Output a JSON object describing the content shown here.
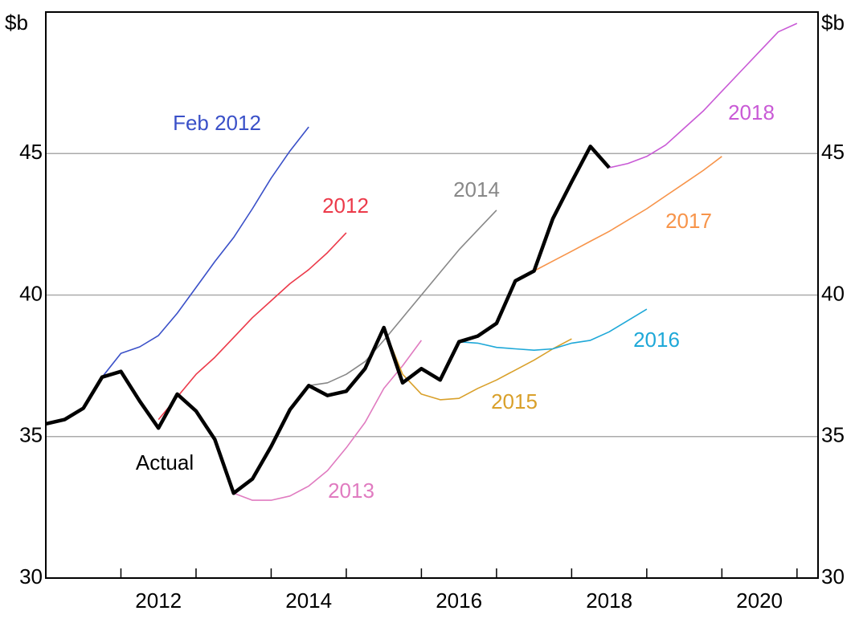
{
  "chart_data": {
    "type": "line",
    "y_unit_label": "$b",
    "xlim": [
      2011,
      2021.28
    ],
    "ylim": [
      30,
      50
    ],
    "yticks": [
      30,
      35,
      40,
      45
    ],
    "xticks": [
      {
        "value": 2012.5,
        "label": "2012"
      },
      {
        "value": 2014.5,
        "label": "2014"
      },
      {
        "value": 2016.5,
        "label": "2016"
      },
      {
        "value": 2018.5,
        "label": "2018"
      },
      {
        "value": 2020.5,
        "label": "2020"
      }
    ],
    "xminor_ticks": [
      2012,
      2013,
      2014,
      2015,
      2016,
      2017,
      2018,
      2019,
      2020,
      2021
    ],
    "grid": true,
    "series": [
      {
        "name": "Actual",
        "color": "#000000",
        "x": [
          2011,
          2011.25,
          2011.5,
          2011.75,
          2012,
          2012.25,
          2012.5,
          2012.75,
          2013,
          2013.25,
          2013.5,
          2013.75,
          2014,
          2014.25,
          2014.5,
          2014.75,
          2015,
          2015.25,
          2015.5,
          2015.75,
          2016,
          2016.25,
          2016.5,
          2016.75,
          2017,
          2017.25,
          2017.5,
          2017.75,
          2018,
          2018.25,
          2018.5
        ],
        "values": [
          35.45,
          35.6,
          36.0,
          37.1,
          37.3,
          36.25,
          35.3,
          36.5,
          35.9,
          34.9,
          33.0,
          33.5,
          34.65,
          35.95,
          36.8,
          36.45,
          36.6,
          37.4,
          38.85,
          36.9,
          37.4,
          37.0,
          38.35,
          38.55,
          39.0,
          40.5,
          40.85,
          42.7,
          44.0,
          45.25,
          44.5
        ]
      },
      {
        "name": "Feb 2012",
        "color": "#3a50c8",
        "x": [
          2011.75,
          2012,
          2012.25,
          2012.5,
          2012.75,
          2013,
          2013.25,
          2013.5,
          2013.75,
          2014,
          2014.25,
          2014.5
        ],
        "values": [
          37.1,
          37.94,
          38.17,
          38.57,
          39.36,
          40.27,
          41.18,
          42.03,
          43.05,
          44.13,
          45.09,
          45.94
        ]
      },
      {
        "name": "2012",
        "color": "#ec3a4a",
        "x": [
          2012.5,
          2012.75,
          2013,
          2013.25,
          2013.5,
          2013.75,
          2014,
          2014.25,
          2014.5,
          2014.75,
          2015
        ],
        "values": [
          35.6,
          36.4,
          37.2,
          37.8,
          38.5,
          39.2,
          39.8,
          40.4,
          40.9,
          41.5,
          42.2
        ]
      },
      {
        "name": "2013",
        "color": "#e07bc0",
        "x": [
          2013.5,
          2013.75,
          2014,
          2014.25,
          2014.5,
          2014.75,
          2015,
          2015.25,
          2015.5,
          2015.75,
          2016
        ],
        "values": [
          33.0,
          32.75,
          32.75,
          32.9,
          33.25,
          33.8,
          34.6,
          35.5,
          36.7,
          37.5,
          38.4
        ]
      },
      {
        "name": "2014",
        "color": "#888888",
        "x": [
          2014.5,
          2014.75,
          2015,
          2015.25,
          2015.5,
          2015.75,
          2016,
          2016.25,
          2016.5,
          2016.75,
          2017
        ],
        "values": [
          36.8,
          36.9,
          37.2,
          37.65,
          38.4,
          39.2,
          40.0,
          40.8,
          41.6,
          42.3,
          43.0
        ]
      },
      {
        "name": "2015",
        "color": "#d9a02a",
        "x": [
          2015.5,
          2015.75,
          2016,
          2016.25,
          2016.5,
          2016.75,
          2017,
          2017.25,
          2017.5,
          2017.75,
          2018
        ],
        "values": [
          38.85,
          37.2,
          36.5,
          36.3,
          36.35,
          36.7,
          37.0,
          37.35,
          37.7,
          38.1,
          38.45
        ]
      },
      {
        "name": "2016",
        "color": "#1ea8d8",
        "x": [
          2016.5,
          2016.75,
          2017,
          2017.25,
          2017.5,
          2017.75,
          2018,
          2018.25,
          2018.5,
          2018.75,
          2019
        ],
        "values": [
          38.35,
          38.3,
          38.15,
          38.1,
          38.05,
          38.1,
          38.3,
          38.4,
          38.7,
          39.1,
          39.5
        ]
      },
      {
        "name": "2017",
        "color": "#f7944a",
        "x": [
          2017.5,
          2017.75,
          2018,
          2018.25,
          2018.5,
          2018.75,
          2019,
          2019.25,
          2019.5,
          2019.75,
          2020
        ],
        "values": [
          40.85,
          41.2,
          41.55,
          41.9,
          42.25,
          42.65,
          43.05,
          43.5,
          43.95,
          44.4,
          44.9
        ]
      },
      {
        "name": "2018",
        "color": "#c95ad6",
        "x": [
          2018.5,
          2018.75,
          2019,
          2019.25,
          2019.5,
          2019.75,
          2020,
          2020.25,
          2020.5,
          2020.75,
          2021
        ],
        "values": [
          44.5,
          44.65,
          44.9,
          45.3,
          45.9,
          46.5,
          47.2,
          47.9,
          48.6,
          49.3,
          49.6
        ]
      }
    ]
  }
}
